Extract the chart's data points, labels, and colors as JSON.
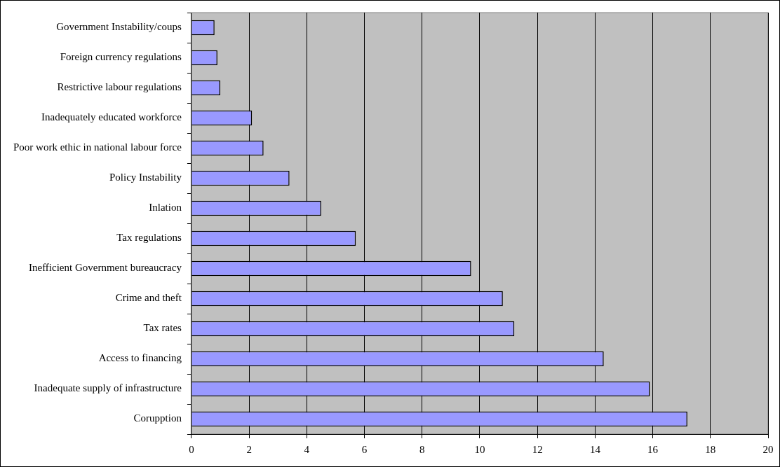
{
  "chart_data": {
    "type": "bar",
    "orientation": "horizontal",
    "categories": [
      "Government Instability/coups",
      "Foreign currency regulations",
      "Restrictive labour regulations",
      "Inadequately educated workforce",
      "Poor work ethic in national labour force",
      "Policy Instability",
      "Inlation",
      "Tax regulations",
      "Inefficient Government bureaucracy",
      "Crime and theft",
      "Tax rates",
      "Access to financing",
      "Inadequate supply of infrastructure",
      "Corupption"
    ],
    "values": [
      0.8,
      0.9,
      1.0,
      2.1,
      2.5,
      3.4,
      4.5,
      5.7,
      9.7,
      10.8,
      11.2,
      14.3,
      15.9,
      17.2
    ],
    "color": "#9999ff",
    "xlim": [
      0,
      20
    ],
    "xticks": [
      0,
      2,
      4,
      6,
      8,
      10,
      12,
      14,
      16,
      18,
      20
    ],
    "grid": "x",
    "legend": false
  }
}
